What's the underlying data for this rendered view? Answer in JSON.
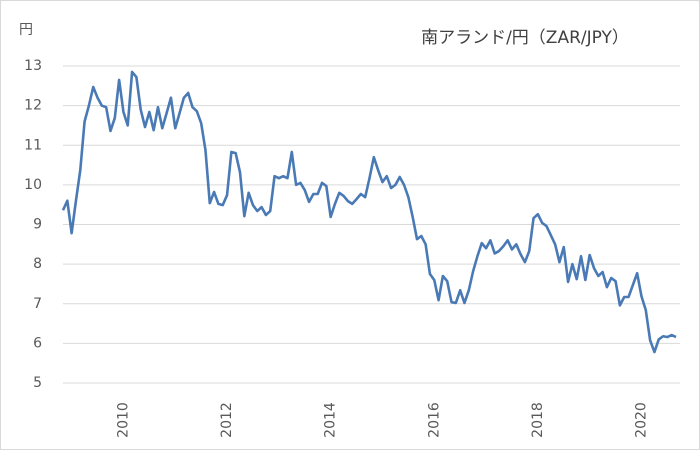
{
  "chart_data": {
    "type": "line",
    "title": "南アランド/円（ZAR/JPY）",
    "y_label": "円",
    "categories": [
      null,
      null,
      null,
      null,
      null,
      null,
      null,
      null,
      null,
      null,
      null,
      null,
      null,
      null,
      "2010",
      null,
      null,
      null,
      null,
      null,
      null,
      null,
      null,
      null,
      null,
      null,
      null,
      null,
      null,
      null,
      null,
      null,
      null,
      null,
      null,
      null,
      null,
      null,
      "2012",
      null,
      null,
      null,
      null,
      null,
      null,
      null,
      null,
      null,
      null,
      null,
      null,
      null,
      null,
      null,
      null,
      null,
      null,
      null,
      null,
      null,
      null,
      null,
      "2014",
      null,
      null,
      null,
      null,
      null,
      null,
      null,
      null,
      null,
      null,
      null,
      null,
      null,
      null,
      null,
      null,
      null,
      null,
      null,
      null,
      null,
      null,
      null,
      "2016",
      null,
      null,
      null,
      null,
      null,
      null,
      null,
      null,
      null,
      null,
      null,
      null,
      null,
      null,
      null,
      null,
      null,
      null,
      null,
      null,
      null,
      null,
      null,
      "2018",
      null,
      null,
      null,
      null,
      null,
      null,
      null,
      null,
      null,
      null,
      null,
      null,
      null,
      null,
      null,
      null,
      null,
      null,
      null,
      null,
      null,
      null,
      null,
      "2020",
      null,
      null,
      null,
      null,
      null,
      null,
      null,
      null
    ],
    "series": [
      {
        "color": "#4a7ab5",
        "values": [
          9.36,
          9.6,
          8.78,
          9.6,
          10.37,
          11.6,
          12.0,
          12.47,
          12.2,
          12.0,
          11.96,
          11.36,
          11.69,
          12.65,
          11.84,
          11.5,
          12.85,
          12.72,
          11.9,
          11.46,
          11.84,
          11.38,
          11.96,
          11.43,
          11.81,
          12.2,
          11.43,
          11.81,
          12.2,
          12.32,
          11.96,
          11.86,
          11.56,
          10.88,
          9.54,
          9.82,
          9.52,
          9.49,
          9.74,
          10.83,
          10.8,
          10.32,
          9.21,
          9.8,
          9.49,
          9.34,
          9.44,
          9.24,
          9.34,
          10.22,
          10.17,
          10.22,
          10.17,
          10.83,
          10.0,
          10.05,
          9.87,
          9.57,
          9.77,
          9.77,
          10.05,
          9.97,
          9.19,
          9.52,
          9.8,
          9.72,
          9.59,
          9.52,
          9.64,
          9.77,
          9.69,
          10.17,
          10.7,
          10.37,
          10.07,
          10.22,
          9.92,
          10.0,
          10.2,
          10.0,
          9.69,
          9.19,
          8.63,
          8.71,
          8.5,
          7.75,
          7.6,
          7.09,
          7.7,
          7.57,
          7.04,
          7.02,
          7.34,
          7.02,
          7.34,
          7.82,
          8.2,
          8.53,
          8.4,
          8.6,
          8.27,
          8.33,
          8.45,
          8.6,
          8.37,
          8.5,
          8.25,
          8.05,
          8.33,
          9.16,
          9.26,
          9.04,
          8.96,
          8.73,
          8.5,
          8.05,
          8.43,
          7.55,
          8.0,
          7.62,
          8.2,
          7.6,
          8.23,
          7.9,
          7.7,
          7.8,
          7.42,
          7.65,
          7.57,
          6.96,
          7.17,
          7.17,
          7.47,
          7.77,
          7.19,
          6.84,
          6.08,
          5.78,
          6.1,
          6.18,
          6.16,
          6.21,
          6.16
        ]
      }
    ],
    "ylim": [
      5,
      13
    ],
    "yticks": [
      5,
      6,
      7,
      8,
      9,
      10,
      11,
      12,
      13
    ],
    "grid": true
  }
}
